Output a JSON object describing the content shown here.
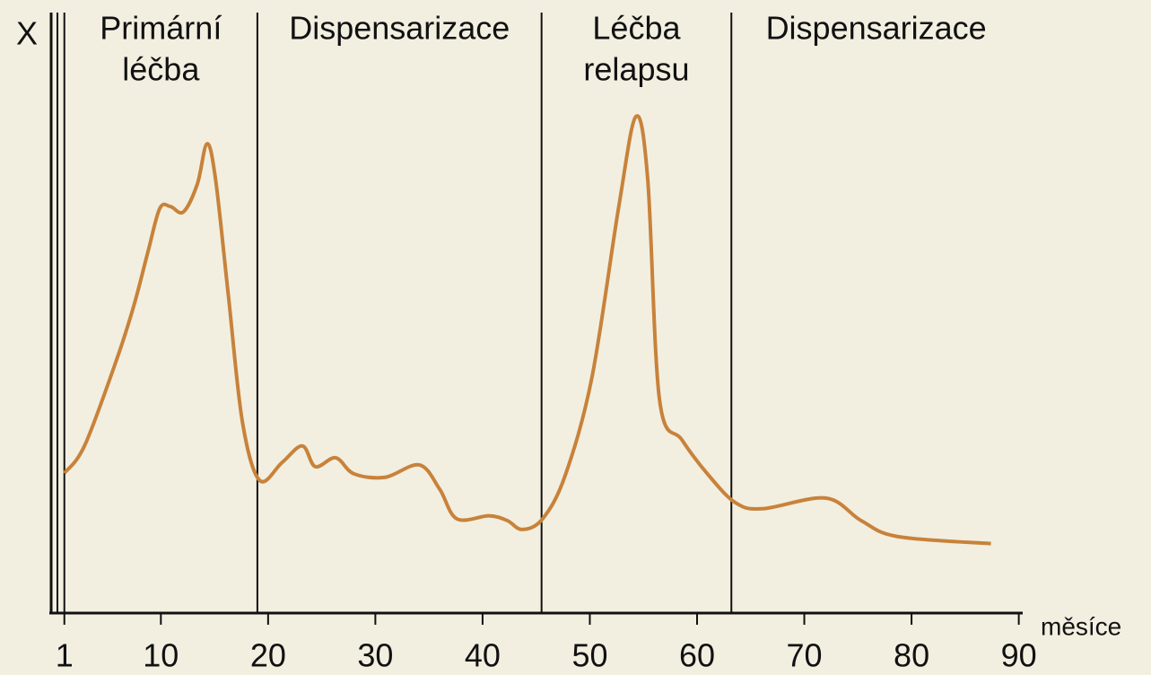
{
  "chart_data": {
    "type": "line",
    "ylabel": "X",
    "xlabel": "měsíce",
    "xlim": [
      -0.4,
      90.2
    ],
    "ylim": [
      0,
      100
    ],
    "xticks": [
      1,
      10,
      20,
      30,
      40,
      50,
      60,
      70,
      80,
      90
    ],
    "phases": [
      {
        "start": 1,
        "lines": [
          "Primární",
          "léčba"
        ]
      },
      {
        "start": 19,
        "lines": [
          "Dispensarizace"
        ]
      },
      {
        "start": 45.5,
        "lines": [
          "Léčba",
          "relapsu"
        ]
      },
      {
        "start": 63.2,
        "lines": [
          "Dispensarizace"
        ]
      }
    ],
    "series": [
      {
        "color": "#c8823a",
        "x": [
          1,
          2.9,
          5.9,
          7.5,
          8.8,
          9.9,
          10.9,
          12.1,
          13.4,
          14.3,
          15.1,
          16.3,
          17.6,
          19.2,
          21.3,
          23.2,
          24.4,
          26.3,
          28,
          30.9,
          34.1,
          36,
          37.6,
          40.6,
          42.3,
          43.7,
          45.6,
          47.7,
          50.2,
          52.7,
          54.3,
          55.4,
          56.5,
          58.6,
          61.1,
          63.6,
          66.1,
          72,
          75.3,
          78.7,
          87.4
        ],
        "values": [
          22.4,
          27.1,
          41.7,
          50.8,
          59.8,
          67.1,
          67.4,
          66.5,
          71.2,
          78,
          72,
          52.3,
          31.1,
          21.2,
          24.2,
          27,
          23.5,
          25,
          22.3,
          21.7,
          23.8,
          19.7,
          14.7,
          15.2,
          14.4,
          12.9,
          14.7,
          22,
          38.6,
          67.4,
          82.6,
          72,
          34.8,
          28,
          22,
          17.4,
          16.4,
          18.2,
          14.4,
          11.7,
          10.5
        ]
      }
    ]
  }
}
